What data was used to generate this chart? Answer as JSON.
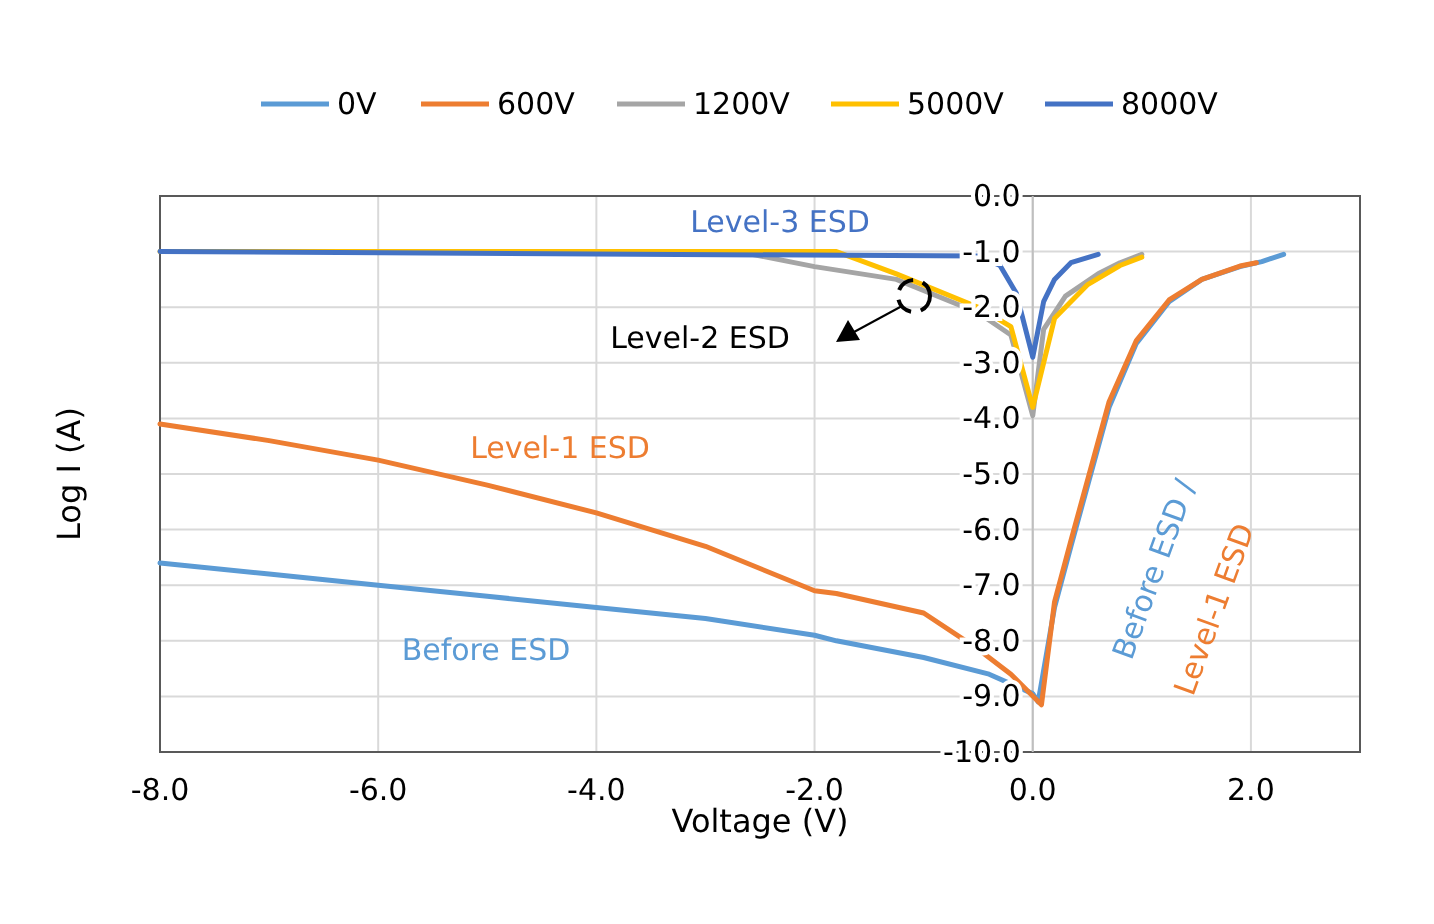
{
  "chart_data": {
    "type": "line",
    "xlabel": "Voltage (V)",
    "ylabel": "Log I (A)",
    "xlim": [
      -8,
      3
    ],
    "ylim": [
      -10,
      0
    ],
    "xticks": [
      {
        "value": -8,
        "label": "-8.0"
      },
      {
        "value": -6,
        "label": "-6.0"
      },
      {
        "value": -4,
        "label": "-4.0"
      },
      {
        "value": -2,
        "label": "-2.0"
      },
      {
        "value": 0,
        "label": "0.0"
      },
      {
        "value": 2,
        "label": "2.0"
      }
    ],
    "yticks": [
      {
        "value": 0,
        "label": "0.0"
      },
      {
        "value": -1,
        "label": "-1.0"
      },
      {
        "value": -2,
        "label": "-2.0"
      },
      {
        "value": -3,
        "label": "-3.0"
      },
      {
        "value": -4,
        "label": "-4.0"
      },
      {
        "value": -5,
        "label": "-5.0"
      },
      {
        "value": -6,
        "label": "-6.0"
      },
      {
        "value": -7,
        "label": "-7.0"
      },
      {
        "value": -8,
        "label": "-8.0"
      },
      {
        "value": -9,
        "label": "-9.0"
      },
      {
        "value": -10,
        "label": "-10.0"
      }
    ],
    "grid": true,
    "legend": "top",
    "marker": "none",
    "line_style": "solid",
    "series": [
      {
        "name": "0V",
        "color": "#5b9bd5",
        "x": [
          -8,
          -7,
          -6,
          -5,
          -4,
          -3,
          -2,
          -1.8,
          -1,
          -0.4,
          0,
          0.05,
          0.2,
          0.35,
          0.7,
          0.95,
          1.25,
          1.55,
          1.9,
          2.1,
          2.3
        ],
        "values": [
          -6.6,
          -6.8,
          -7.0,
          -7.2,
          -7.4,
          -7.6,
          -7.9,
          -8.0,
          -8.3,
          -8.6,
          -8.95,
          -9.1,
          -7.4,
          -6.3,
          -3.8,
          -2.65,
          -1.9,
          -1.5,
          -1.27,
          -1.18,
          -1.05
        ]
      },
      {
        "name": "600V",
        "color": "#ed7d31",
        "x": [
          -8,
          -7,
          -6,
          -5,
          -4,
          -3,
          -2,
          -1.8,
          -1,
          -0.5,
          -0.2,
          0.08,
          0.2,
          0.35,
          0.7,
          0.95,
          1.25,
          1.55,
          1.9,
          2.05
        ],
        "values": [
          -4.1,
          -4.4,
          -4.75,
          -5.2,
          -5.7,
          -6.3,
          -7.1,
          -7.15,
          -7.5,
          -8.15,
          -8.6,
          -9.15,
          -7.3,
          -6.2,
          -3.7,
          -2.6,
          -1.87,
          -1.5,
          -1.26,
          -1.2
        ]
      },
      {
        "name": "1200V",
        "color": "#a5a5a5",
        "x": [
          -2.7,
          -2,
          -1.25,
          -0.5,
          -0.2,
          0,
          0.1,
          0.3,
          0.6,
          0.8,
          1.0
        ],
        "values": [
          -1.0,
          -1.27,
          -1.5,
          -2.1,
          -2.5,
          -3.95,
          -2.4,
          -1.8,
          -1.4,
          -1.2,
          -1.05
        ]
      },
      {
        "name": "5000V",
        "color": "#ffc000",
        "x": [
          -8,
          -1.8,
          -1.25,
          -0.5,
          -0.2,
          0,
          0.2,
          0.5,
          0.8,
          1.0
        ],
        "values": [
          -1.0,
          -1.0,
          -1.4,
          -2.0,
          -2.35,
          -3.8,
          -2.2,
          -1.6,
          -1.25,
          -1.1
        ]
      },
      {
        "name": "8000V",
        "color": "#4472c4",
        "x": [
          -8,
          -0.5,
          -0.3,
          -0.15,
          0,
          0.1,
          0.2,
          0.35,
          0.6
        ],
        "values": [
          -1.0,
          -1.08,
          -1.25,
          -1.75,
          -2.9,
          -1.9,
          -1.5,
          -1.2,
          -1.05
        ]
      }
    ],
    "annotations": [
      "Level-3 ESD",
      "Level-2 ESD",
      "Level-1 ESD",
      "Before ESD",
      "Before ESD /",
      "Level-1 ESD"
    ]
  }
}
